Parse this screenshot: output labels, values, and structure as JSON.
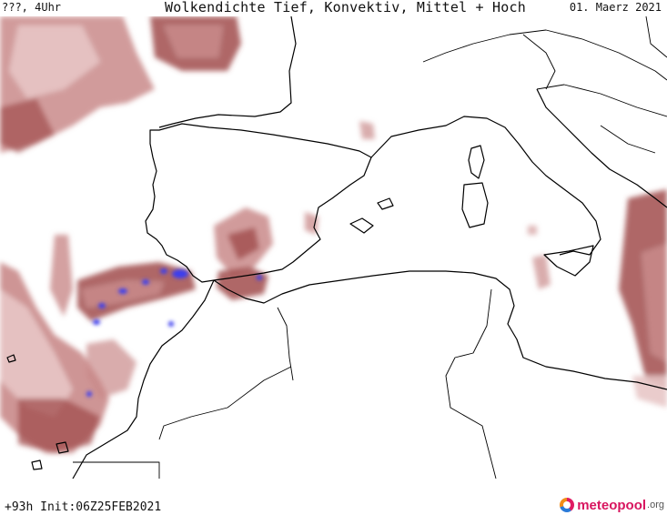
{
  "header": {
    "left_text": "???, 4Uhr",
    "title": "Wolkendichte  Tief, Konvektiv, Mittel + Hoch",
    "date": "01. Maerz 2021"
  },
  "footer": {
    "run_info": "+93h Init:06Z25FEB2021",
    "brand_name": "meteopool",
    "brand_tld": ".org"
  },
  "colors": {
    "cloud_light": "#e8c7c7",
    "cloud_mid": "#c98989",
    "cloud_dark": "#a14e4e",
    "convective": "#3b3cf0",
    "coastline": "#000000",
    "background": "#ffffff"
  },
  "icons": {
    "brand_logo": "meteopool-logo-icon"
  }
}
